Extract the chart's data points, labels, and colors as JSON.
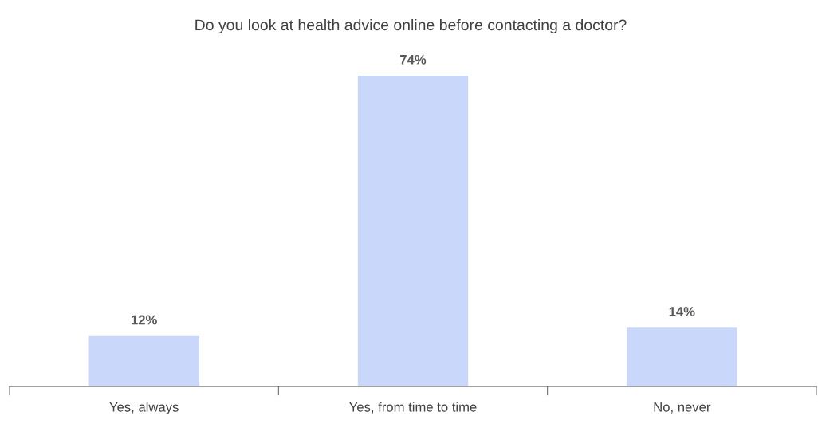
{
  "chart_data": {
    "type": "bar",
    "title": "Do you look at health advice online before contacting a doctor?",
    "categories": [
      "Yes, always",
      "Yes, from time to time",
      "No, never"
    ],
    "values": [
      12,
      74,
      14
    ],
    "value_labels": [
      "12%",
      "74%",
      "14%"
    ],
    "color": "#c9d7fb"
  }
}
